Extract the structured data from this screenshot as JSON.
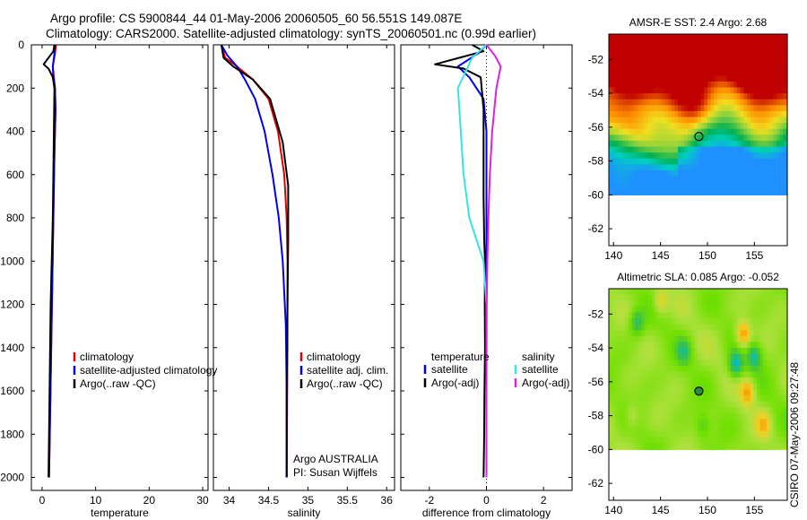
{
  "header": {
    "line1": "Argo profile: CS 5900844_44 01-May-2006 20060505_60 56.551S 149.087E",
    "line2": "Climatology: CARS2000. Satellite-adjusted climatology: synTS_20060501.nc (0.99d earlier)"
  },
  "side_label": "CSIRO 07-May-2006 09:27:48",
  "colors": {
    "climatology": "#e00000",
    "satellite": "#0000ee",
    "argo": "#000000",
    "sal_satellite": "#33e6e6",
    "sal_argo": "#e020e0",
    "float_marker": "#000000"
  },
  "chart_data": [
    {
      "id": "temperature",
      "type": "line",
      "xlabel": "temperature",
      "ylabel": "",
      "xlim": [
        -2,
        31
      ],
      "ylim": [
        2060,
        0
      ],
      "xticks": [
        0,
        10,
        20,
        30
      ],
      "yticks": [
        0,
        200,
        400,
        600,
        800,
        1000,
        1200,
        1400,
        1600,
        1800,
        2000
      ],
      "ytick_labels_shown": true,
      "legend": {
        "placement": "middle-right",
        "entries": [
          "climatology",
          "satellite-adjusted climatology",
          "Argo(..raw -QC)"
        ]
      },
      "series": [
        {
          "name": "climatology",
          "color_key": "climatology",
          "points": [
            [
              2.6,
              0
            ],
            [
              2.4,
              40
            ],
            [
              2.0,
              100
            ],
            [
              2.2,
              150
            ],
            [
              2.4,
              200
            ],
            [
              2.5,
              300
            ],
            [
              2.3,
              500
            ],
            [
              2.1,
              800
            ],
            [
              1.9,
              1100
            ],
            [
              1.7,
              1400
            ],
            [
              1.5,
              1700
            ],
            [
              1.3,
              2000
            ]
          ]
        },
        {
          "name": "satellite-adjusted climatology",
          "color_key": "satellite",
          "points": [
            [
              2.4,
              0
            ],
            [
              2.3,
              40
            ],
            [
              2.0,
              100
            ],
            [
              2.1,
              150
            ],
            [
              2.4,
              200
            ],
            [
              2.5,
              300
            ],
            [
              2.3,
              500
            ],
            [
              2.1,
              800
            ],
            [
              1.9,
              1100
            ],
            [
              1.7,
              1400
            ],
            [
              1.5,
              1700
            ],
            [
              1.3,
              2000
            ]
          ]
        },
        {
          "name": "Argo(..raw -QC)",
          "color_key": "argo",
          "points": [
            [
              2.3,
              0
            ],
            [
              2.1,
              30
            ],
            [
              0.3,
              90
            ],
            [
              1.2,
              110
            ],
            [
              2.0,
              150
            ],
            [
              2.3,
              200
            ],
            [
              2.2,
              400
            ],
            [
              2.1,
              600
            ],
            [
              2.0,
              800
            ],
            [
              1.8,
              1000
            ],
            [
              1.6,
              1200
            ],
            [
              1.5,
              1400
            ],
            [
              1.4,
              1600
            ],
            [
              1.3,
              1800
            ],
            [
              1.2,
              2000
            ]
          ]
        }
      ]
    },
    {
      "id": "salinity",
      "type": "line",
      "xlabel": "salinity",
      "ylabel": "",
      "xlim": [
        33.8,
        36.1
      ],
      "ylim": [
        2060,
        0
      ],
      "xticks": [
        34,
        34.5,
        35,
        35.5,
        36
      ],
      "yticks": [
        0,
        200,
        400,
        600,
        800,
        1000,
        1200,
        1400,
        1600,
        1800,
        2000
      ],
      "ytick_labels_shown": false,
      "legend": {
        "placement": "middle-right",
        "entries": [
          "climatology",
          "satellite adj. clim.",
          "Argo(..raw -QC)"
        ]
      },
      "annotation": [
        "Argo AUSTRALIA",
        "PI: Susan Wijffels"
      ],
      "series": [
        {
          "name": "climatology",
          "color_key": "climatology",
          "points": [
            [
              33.9,
              0
            ],
            [
              33.95,
              60
            ],
            [
              34.1,
              100
            ],
            [
              34.3,
              160
            ],
            [
              34.5,
              250
            ],
            [
              34.62,
              400
            ],
            [
              34.7,
              600
            ],
            [
              34.73,
              800
            ],
            [
              34.74,
              1000
            ],
            [
              34.74,
              1400
            ],
            [
              34.73,
              2000
            ]
          ]
        },
        {
          "name": "satellite adj. clim.",
          "color_key": "satellite",
          "points": [
            [
              33.9,
              0
            ],
            [
              33.98,
              50
            ],
            [
              34.1,
              100
            ],
            [
              34.2,
              160
            ],
            [
              34.33,
              250
            ],
            [
              34.45,
              400
            ],
            [
              34.55,
              600
            ],
            [
              34.63,
              800
            ],
            [
              34.68,
              1000
            ],
            [
              34.72,
              1300
            ],
            [
              34.73,
              1600
            ],
            [
              34.73,
              2000
            ]
          ]
        },
        {
          "name": "Argo(..raw -QC)",
          "color_key": "argo",
          "points": [
            [
              33.9,
              0
            ],
            [
              33.93,
              60
            ],
            [
              34.05,
              100
            ],
            [
              34.3,
              160
            ],
            [
              34.52,
              250
            ],
            [
              34.68,
              450
            ],
            [
              34.75,
              650
            ],
            [
              34.75,
              900
            ],
            [
              34.74,
              1200
            ],
            [
              34.73,
              1600
            ],
            [
              34.73,
              2000
            ]
          ]
        }
      ]
    },
    {
      "id": "difference",
      "type": "line",
      "xlabel": "difference from climatology",
      "ylabel": "",
      "xlim": [
        -3,
        3
      ],
      "ylim": [
        2060,
        0
      ],
      "xticks": [
        -2,
        0,
        2
      ],
      "yticks": [
        0,
        200,
        400,
        600,
        800,
        1000,
        1200,
        1400,
        1600,
        1800,
        2000
      ],
      "ytick_labels_shown": false,
      "legend": {
        "placement": "middle",
        "temperature_header": "temperature",
        "temperature_entries": [
          "satellite",
          "Argo(-adj)"
        ],
        "salinity_header": "salinity",
        "salinity_entries": [
          "satellite",
          "Argo(-adj)"
        ]
      },
      "series": [
        {
          "name": "temperature satellite",
          "color_key": "satellite",
          "points": [
            [
              0,
              0
            ],
            [
              -0.3,
              40
            ],
            [
              -1.0,
              100
            ],
            [
              -0.6,
              150
            ],
            [
              -0.1,
              250
            ],
            [
              0,
              400
            ],
            [
              0,
              2000
            ]
          ]
        },
        {
          "name": "temperature Argo(-adj)",
          "color_key": "argo",
          "points": [
            [
              -0.5,
              0
            ],
            [
              -0.1,
              30
            ],
            [
              -1.8,
              90
            ],
            [
              -0.8,
              110
            ],
            [
              -0.2,
              150
            ],
            [
              -0.1,
              300
            ],
            [
              -0.1,
              500
            ],
            [
              -0.1,
              700
            ],
            [
              -0.08,
              900
            ],
            [
              -0.05,
              1000
            ],
            [
              -0.06,
              1200
            ],
            [
              -0.05,
              1400
            ],
            [
              -0.07,
              1600
            ],
            [
              -0.08,
              1800
            ],
            [
              -0.1,
              2000
            ]
          ]
        },
        {
          "name": "salinity satellite",
          "color_key": "sal_satellite",
          "points": [
            [
              0,
              0
            ],
            [
              -0.5,
              60
            ],
            [
              -1.0,
              200
            ],
            [
              -0.9,
              400
            ],
            [
              -0.8,
              600
            ],
            [
              -0.6,
              800
            ],
            [
              -0.1,
              1000
            ],
            [
              0,
              1200
            ],
            [
              0,
              2000
            ]
          ]
        },
        {
          "name": "salinity Argo(-adj)",
          "color_key": "sal_argo",
          "points": [
            [
              0,
              0
            ],
            [
              0.3,
              50
            ],
            [
              0.5,
              100
            ],
            [
              0.35,
              200
            ],
            [
              0.2,
              400
            ],
            [
              0.12,
              600
            ],
            [
              0.07,
              800
            ],
            [
              0.03,
              1000
            ],
            [
              0.01,
              1200
            ],
            [
              0,
              1600
            ],
            [
              0,
              2000
            ]
          ]
        }
      ]
    },
    {
      "id": "sst_map",
      "type": "heatmap",
      "title": "AMSR-E SST: 2.4  Argo: 2.68",
      "xlim": [
        139.5,
        158.5
      ],
      "ylim": [
        -63,
        -50.5
      ],
      "xticks": [
        140,
        145,
        150,
        155
      ],
      "yticks": [
        -52,
        -54,
        -56,
        -58,
        -60,
        -62
      ],
      "data_ylim": [
        -60,
        -50.5
      ],
      "float_position": [
        149.087,
        -56.551
      ],
      "color_scale": [
        "#1e90ff",
        "#00d0c0",
        "#00b050",
        "#80d040",
        "#f0e020",
        "#ff9000",
        "#c00000"
      ],
      "value_range": [
        0,
        6
      ]
    },
    {
      "id": "sla_map",
      "type": "heatmap",
      "title": "Altimetric SLA: 0.085  Argo: -0.052",
      "xlim": [
        139.5,
        158.5
      ],
      "ylim": [
        -63,
        -50.5
      ],
      "xticks": [
        140,
        145,
        150,
        155
      ],
      "yticks": [
        -52,
        -54,
        -56,
        -58,
        -60,
        -62
      ],
      "data_ylim": [
        -60,
        -50.5
      ],
      "float_position": [
        149.087,
        -56.551
      ],
      "color_scale": [
        "#0080ff",
        "#00c0c0",
        "#40c040",
        "#70e000",
        "#b0e040",
        "#f0d020",
        "#ff9000",
        "#ff5000"
      ],
      "value_range": [
        -0.4,
        0.4
      ]
    }
  ]
}
